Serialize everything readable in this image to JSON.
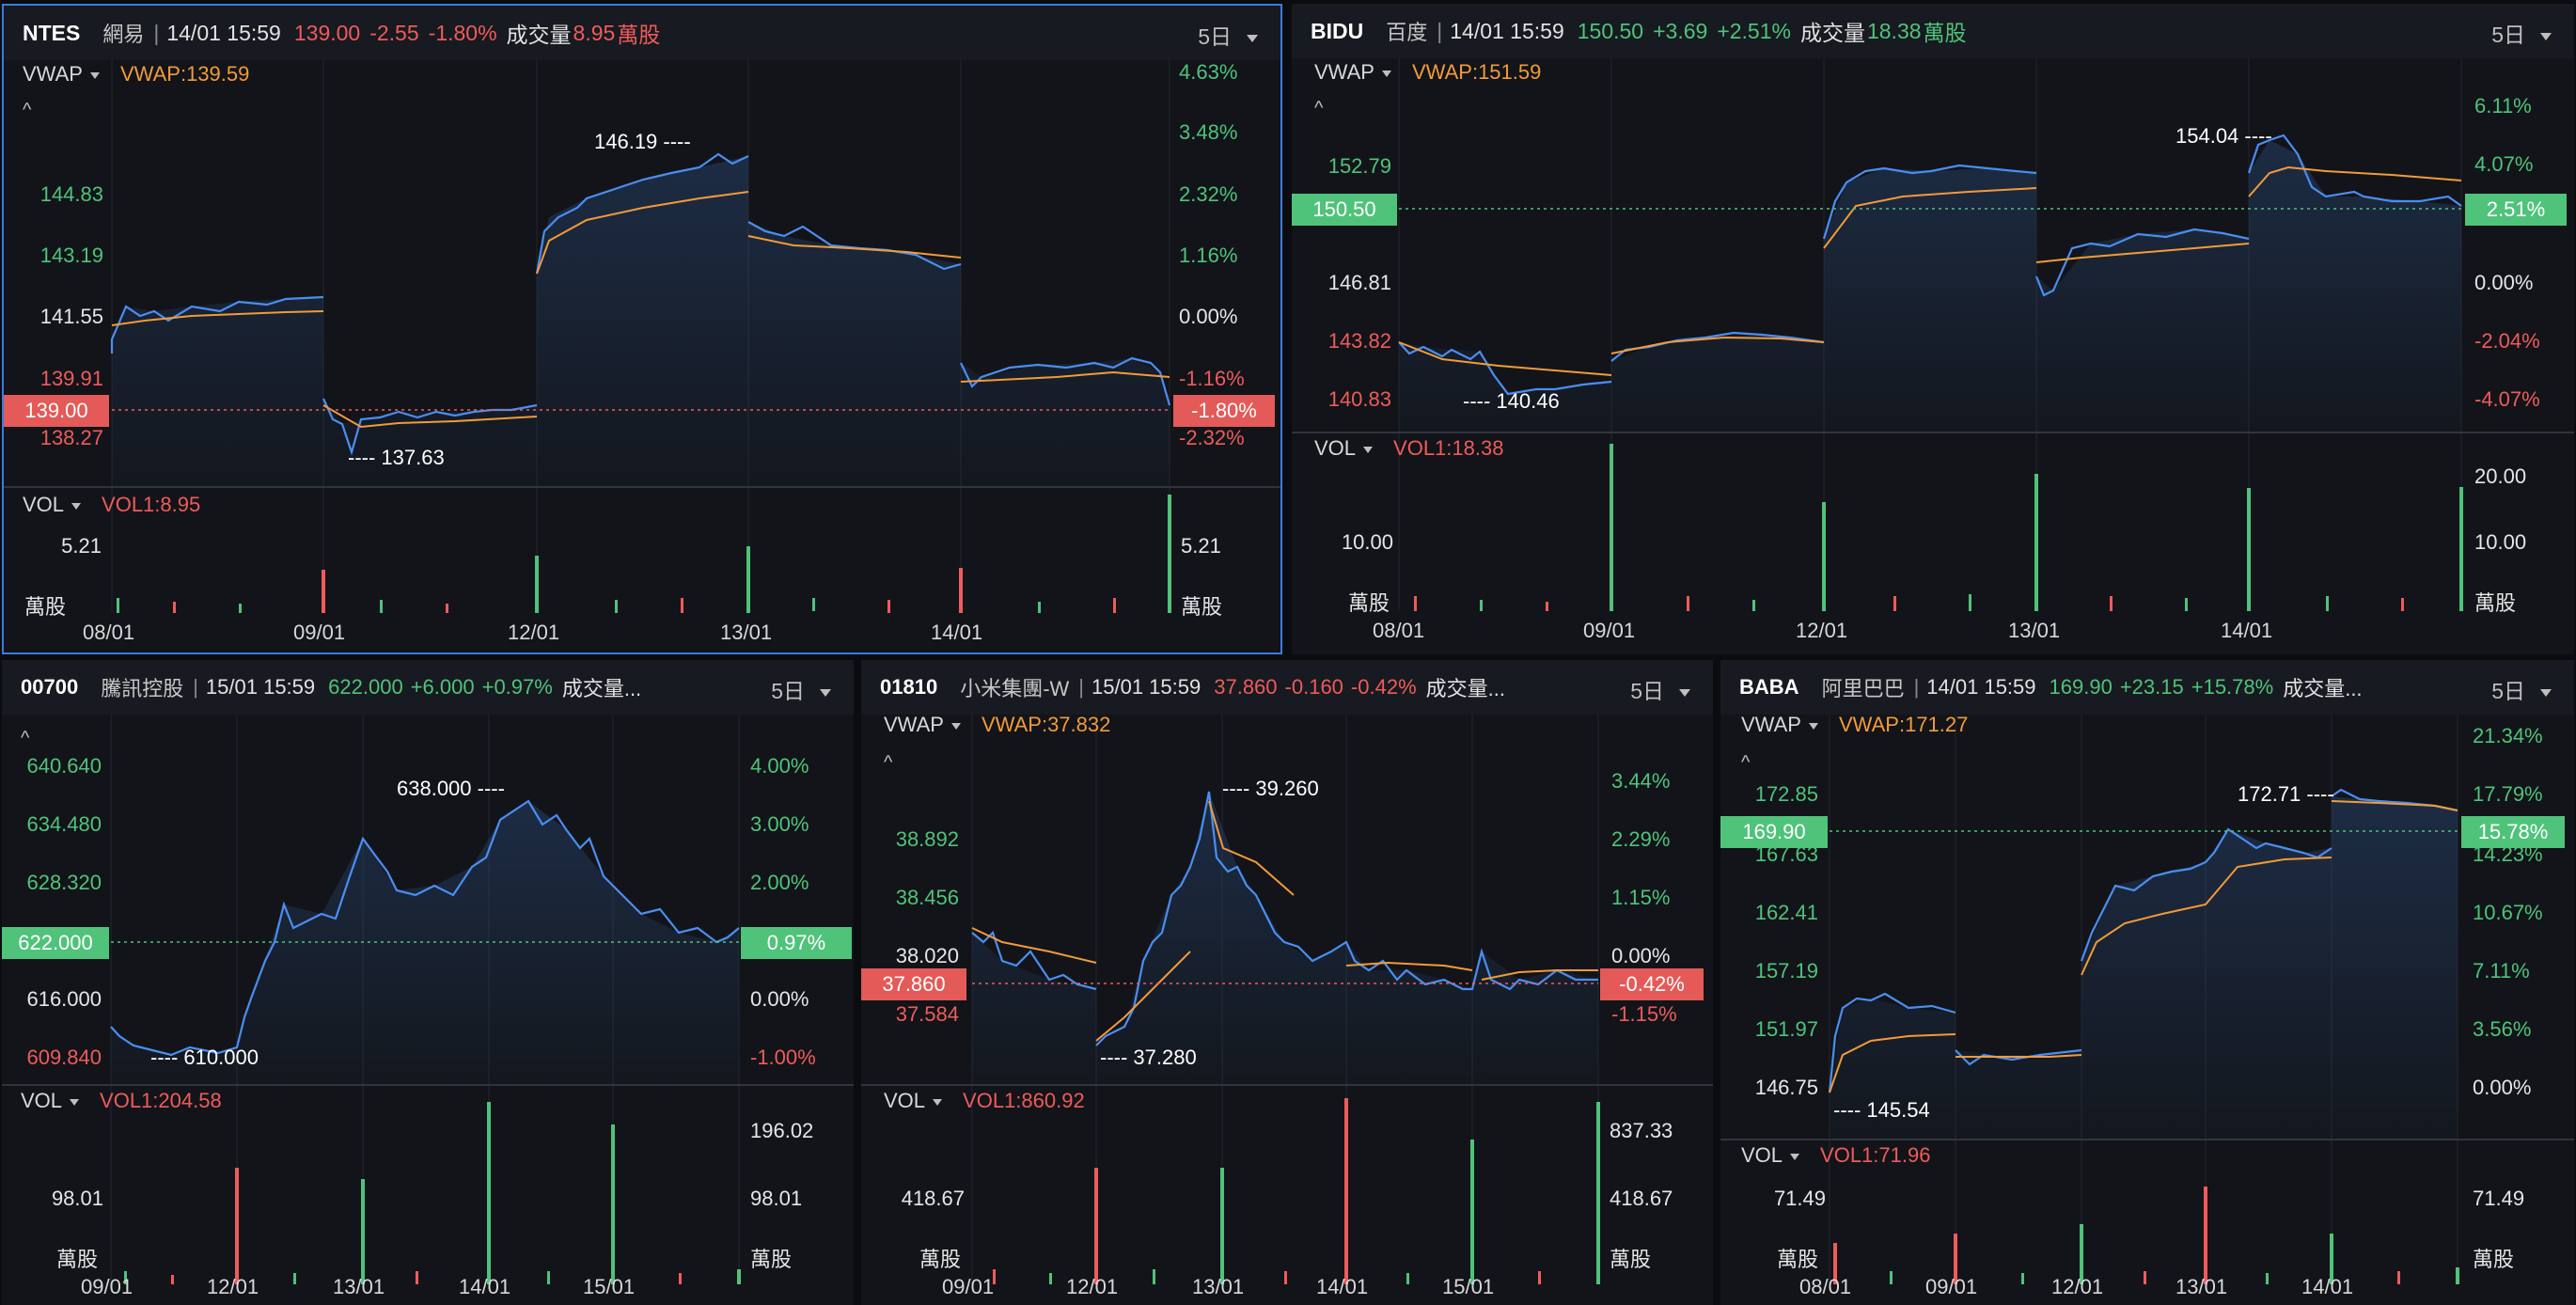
{
  "colors": {
    "up": "#4fc37a",
    "down": "#ef5b5b",
    "price_line": "#4a8ef2",
    "vwap_line": "#f29b38",
    "background": "#121419",
    "grid": "#23262d"
  },
  "panels": [
    {
      "symbol": "NTES",
      "name": "網易",
      "time": "14/01 15:59",
      "price": "139.00",
      "change": "-2.55",
      "pct": "-1.80%",
      "dir": "down",
      "volume_label": "成交量",
      "volume": "8.95",
      "volume_unit": "萬股",
      "range": "5日",
      "vwap_label": "VWAP",
      "vwap_value": "VWAP:139.59",
      "left_ticks": [
        {
          "v": "144.83",
          "c": "up"
        },
        {
          "v": "143.19",
          "c": "up"
        },
        {
          "v": "141.55",
          "c": "neutral"
        },
        {
          "v": "139.91",
          "c": "down"
        },
        {
          "v": "138.27",
          "c": "down"
        }
      ],
      "right_ticks": [
        {
          "v": "4.63%",
          "c": "up"
        },
        {
          "v": "3.48%",
          "c": "up"
        },
        {
          "v": "2.32%",
          "c": "up"
        },
        {
          "v": "1.16%",
          "c": "up"
        },
        {
          "v": "0.00%",
          "c": "neutral"
        },
        {
          "v": "-1.16%",
          "c": "down"
        },
        {
          "v": "-2.32%",
          "c": "down"
        }
      ],
      "current_price_tag": "139.00",
      "current_pct_tag": "-1.80%",
      "high_label": "146.19",
      "low_label": "137.63",
      "vol_label": "VOL",
      "vol_value": "VOL1:8.95",
      "vol_tick": "5.21",
      "vol_tick_right": "5.21",
      "vol_unit": "萬股",
      "dates": [
        "08/01",
        "09/01",
        "12/01",
        "13/01",
        "14/01"
      ]
    },
    {
      "symbol": "BIDU",
      "name": "百度",
      "time": "14/01 15:59",
      "price": "150.50",
      "change": "+3.69",
      "pct": "+2.51%",
      "dir": "up",
      "volume_label": "成交量",
      "volume": "18.38",
      "volume_unit": "萬股",
      "range": "5日",
      "vwap_label": "VWAP",
      "vwap_value": "VWAP:151.59",
      "left_ticks": [
        {
          "v": "152.79",
          "c": "up"
        },
        {
          "v": "146.81",
          "c": "neutral"
        },
        {
          "v": "143.82",
          "c": "down"
        },
        {
          "v": "140.83",
          "c": "down"
        }
      ],
      "right_ticks": [
        {
          "v": "6.11%",
          "c": "up"
        },
        {
          "v": "4.07%",
          "c": "up"
        },
        {
          "v": "0.00%",
          "c": "neutral"
        },
        {
          "v": "-2.04%",
          "c": "down"
        },
        {
          "v": "-4.07%",
          "c": "down"
        }
      ],
      "current_price_tag": "150.50",
      "current_pct_tag": "2.51%",
      "high_label": "154.04",
      "low_label": "140.46",
      "vol_label": "VOL",
      "vol_value": "VOL1:18.38",
      "vol_tick": "10.00",
      "vol_tick_right": "10.00",
      "vol_tick_right_top": "20.00",
      "vol_unit": "萬股",
      "dates": [
        "08/01",
        "09/01",
        "12/01",
        "13/01",
        "14/01"
      ]
    },
    {
      "symbol": "00700",
      "name": "騰訊控股",
      "time": "15/01 15:59",
      "price": "622.000",
      "change": "+6.000",
      "pct": "+0.97%",
      "dir": "up",
      "volume_label": "成交量...",
      "volume": "",
      "volume_unit": "",
      "range": "5日",
      "vwap_label": "",
      "vwap_value": "",
      "left_ticks": [
        {
          "v": "640.640",
          "c": "up"
        },
        {
          "v": "634.480",
          "c": "up"
        },
        {
          "v": "628.320",
          "c": "up"
        },
        {
          "v": "616.000",
          "c": "neutral"
        },
        {
          "v": "609.840",
          "c": "down"
        }
      ],
      "right_ticks": [
        {
          "v": "4.00%",
          "c": "up"
        },
        {
          "v": "3.00%",
          "c": "up"
        },
        {
          "v": "2.00%",
          "c": "up"
        },
        {
          "v": "0.00%",
          "c": "neutral"
        },
        {
          "v": "-1.00%",
          "c": "down"
        }
      ],
      "current_price_tag": "622.000",
      "current_pct_tag": "0.97%",
      "high_label": "638.000",
      "low_label": "610.000",
      "vol_label": "VOL",
      "vol_value": "VOL1:204.58",
      "vol_tick": "98.01",
      "vol_tick_right": "98.01",
      "vol_tick_right_top": "196.02",
      "vol_unit": "萬股",
      "dates": [
        "09/01",
        "12/01",
        "13/01",
        "14/01",
        "15/01"
      ]
    },
    {
      "symbol": "01810",
      "name": "小米集團-W",
      "time": "15/01 15:59",
      "price": "37.860",
      "change": "-0.160",
      "pct": "-0.42%",
      "dir": "down",
      "volume_label": "成交量...",
      "volume": "",
      "volume_unit": "",
      "range": "5日",
      "vwap_label": "VWAP",
      "vwap_value": "VWAP:37.832",
      "left_ticks": [
        {
          "v": "38.892",
          "c": "up"
        },
        {
          "v": "38.456",
          "c": "up"
        },
        {
          "v": "38.020",
          "c": "neutral"
        },
        {
          "v": "37.584",
          "c": "down"
        }
      ],
      "right_ticks": [
        {
          "v": "3.44%",
          "c": "up"
        },
        {
          "v": "2.29%",
          "c": "up"
        },
        {
          "v": "1.15%",
          "c": "up"
        },
        {
          "v": "0.00%",
          "c": "neutral"
        },
        {
          "v": "-1.15%",
          "c": "down"
        }
      ],
      "current_price_tag": "37.860",
      "current_pct_tag": "-0.42%",
      "high_label": "39.260",
      "low_label": "37.280",
      "vol_label": "VOL",
      "vol_value": "VOL1:860.92",
      "vol_tick": "418.67",
      "vol_tick_right": "418.67",
      "vol_tick_right_top": "837.33",
      "vol_unit": "萬股",
      "dates": [
        "09/01",
        "12/01",
        "13/01",
        "14/01",
        "15/01"
      ]
    },
    {
      "symbol": "BABA",
      "name": "阿里巴巴",
      "time": "14/01 15:59",
      "price": "169.90",
      "change": "+23.15",
      "pct": "+15.78%",
      "dir": "up",
      "volume_label": "成交量...",
      "volume": "",
      "volume_unit": "",
      "range": "5日",
      "vwap_label": "VWAP",
      "vwap_value": "VWAP:171.27",
      "left_ticks": [
        {
          "v": "172.85",
          "c": "up"
        },
        {
          "v": "167.63",
          "c": "up"
        },
        {
          "v": "162.41",
          "c": "up"
        },
        {
          "v": "157.19",
          "c": "up"
        },
        {
          "v": "151.97",
          "c": "up"
        },
        {
          "v": "146.75",
          "c": "neutral"
        }
      ],
      "right_ticks": [
        {
          "v": "21.34%",
          "c": "up"
        },
        {
          "v": "17.79%",
          "c": "up"
        },
        {
          "v": "14.23%",
          "c": "up"
        },
        {
          "v": "10.67%",
          "c": "up"
        },
        {
          "v": "7.11%",
          "c": "up"
        },
        {
          "v": "3.56%",
          "c": "up"
        },
        {
          "v": "0.00%",
          "c": "neutral"
        }
      ],
      "current_price_tag": "169.90",
      "current_pct_tag": "15.78%",
      "high_label": "172.71",
      "low_label": "145.54",
      "vol_label": "VOL",
      "vol_value": "VOL1:71.96",
      "vol_tick": "71.49",
      "vol_tick_right": "71.49",
      "vol_unit": "萬股",
      "dates": [
        "08/01",
        "09/01",
        "12/01",
        "13/01",
        "14/01"
      ]
    }
  ]
}
